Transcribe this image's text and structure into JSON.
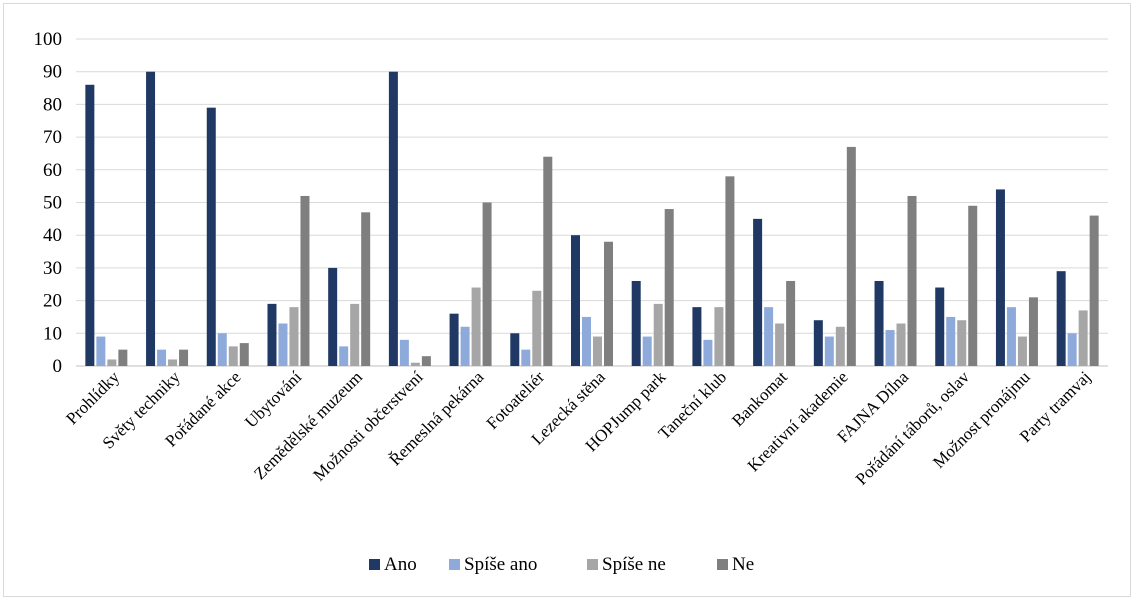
{
  "chart_data": {
    "type": "bar",
    "title": "",
    "xlabel": "",
    "ylabel": "",
    "ylim": [
      0,
      100
    ],
    "yticks": [
      "0",
      "10",
      "20",
      "30",
      "40",
      "50",
      "60",
      "70",
      "80",
      "90",
      "100"
    ],
    "grid": true,
    "legend_position": "bottom",
    "categories": [
      "Prohlídky",
      "Světy techniky",
      "Pořádané akce",
      "Ubytování",
      "Zemědělské muzeum",
      "Možnosti občerstvení",
      "Řemeslná pekárna",
      "Fotoateliér",
      "Lezecká stěna",
      "HOPJump park",
      "Taneční klub",
      "Bankomat",
      "Kreativní akademie",
      "FAJNA Dílna",
      "Pořádání táborů, oslav",
      "Možnost pronájmu",
      "Party tramvaj"
    ],
    "series": [
      {
        "name": "Ano",
        "color": "#203864",
        "values": [
          86,
          90,
          79,
          19,
          30,
          90,
          16,
          10,
          40,
          26,
          18,
          45,
          14,
          26,
          24,
          54,
          29
        ]
      },
      {
        "name": "Spíše ano",
        "color": "#8eaadb",
        "values": [
          9,
          5,
          10,
          13,
          6,
          8,
          12,
          5,
          15,
          9,
          8,
          18,
          9,
          11,
          15,
          18,
          10
        ]
      },
      {
        "name": "Spíše ne",
        "color": "#a6a6a6",
        "values": [
          2,
          2,
          6,
          18,
          19,
          1,
          24,
          23,
          9,
          19,
          18,
          13,
          12,
          13,
          14,
          9,
          17
        ]
      },
      {
        "name": "Ne",
        "color": "#7f7f7f",
        "values": [
          5,
          5,
          7,
          52,
          47,
          3,
          50,
          64,
          38,
          48,
          58,
          26,
          67,
          52,
          49,
          21,
          46
        ]
      }
    ]
  }
}
